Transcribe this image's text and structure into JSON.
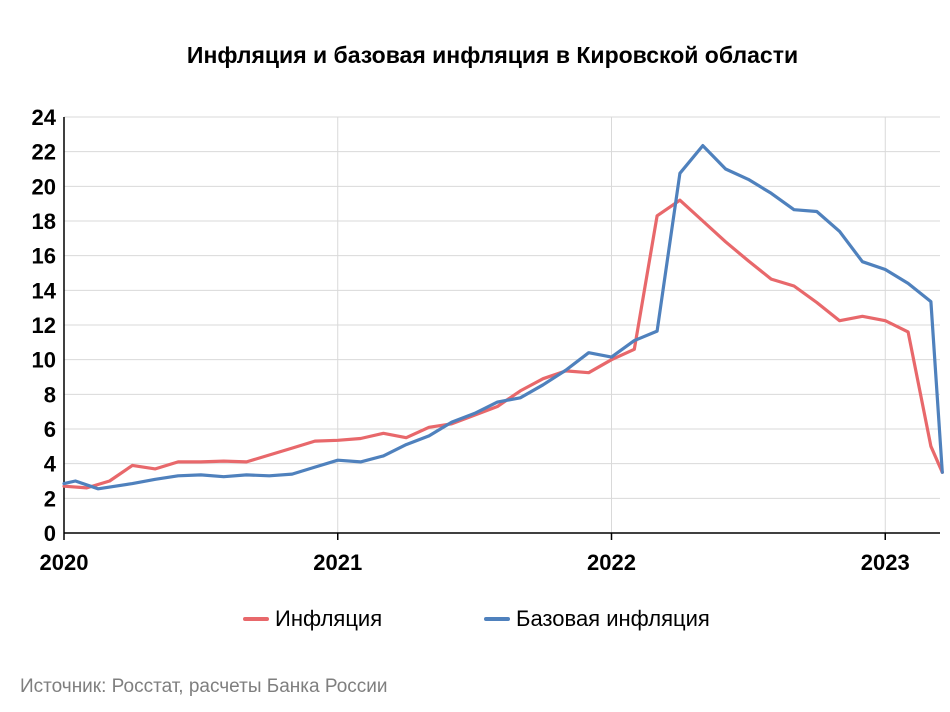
{
  "source_note": "Источник: Росстат, расчеты Банка России",
  "chart_data": {
    "type": "line",
    "title": "Инфляция и базовая инфляция в Кировской области",
    "ylim": [
      0,
      24
    ],
    "yticks": [
      0,
      2,
      4,
      6,
      8,
      10,
      12,
      14,
      16,
      18,
      20,
      22,
      24
    ],
    "xlim": [
      0,
      38.4
    ],
    "xticks": [
      {
        "label": "2020",
        "x": 0
      },
      {
        "label": "2021",
        "x": 12
      },
      {
        "label": "2022",
        "x": 24
      },
      {
        "label": "2023",
        "x": 36
      }
    ],
    "grid": true,
    "legend_position": "bottom",
    "series": [
      {
        "name": "Инфляция",
        "color": "#E8686B",
        "x": [
          0,
          1,
          2,
          3,
          4,
          5,
          6,
          7,
          8,
          9,
          10,
          11,
          12,
          13,
          14,
          15,
          16,
          17,
          18,
          19,
          20,
          21,
          22,
          23,
          24,
          25,
          26,
          27,
          28,
          29,
          30,
          31,
          32,
          33,
          34,
          35,
          36,
          37,
          38,
          38.5
        ],
        "values": [
          2.7,
          2.6,
          3.0,
          3.9,
          3.7,
          4.1,
          4.1,
          4.15,
          4.1,
          4.5,
          4.9,
          5.3,
          5.35,
          5.45,
          5.75,
          5.5,
          6.1,
          6.3,
          6.8,
          7.3,
          8.2,
          8.9,
          9.35,
          9.25,
          10.0,
          10.6,
          18.3,
          19.2,
          18.0,
          16.8,
          15.7,
          14.65,
          14.25,
          13.3,
          12.25,
          12.5,
          12.25,
          11.6,
          5.0,
          3.5
        ]
      },
      {
        "name": "Базовая инфляция",
        "color": "#4F81BD",
        "x": [
          0,
          0.5,
          1.5,
          3,
          4,
          5,
          6,
          7,
          8,
          9,
          10,
          11,
          12,
          13,
          14,
          15,
          16,
          17,
          18,
          19,
          20,
          21,
          22,
          23,
          24,
          25,
          26,
          27,
          28,
          29,
          30,
          31,
          32,
          33,
          34,
          35,
          36,
          37,
          38,
          38.5
        ],
        "values": [
          2.85,
          3.0,
          2.55,
          2.85,
          3.1,
          3.3,
          3.35,
          3.25,
          3.35,
          3.3,
          3.4,
          3.8,
          4.2,
          4.1,
          4.45,
          5.1,
          5.6,
          6.4,
          6.9,
          7.55,
          7.8,
          8.55,
          9.4,
          10.4,
          10.15,
          11.1,
          11.65,
          20.75,
          22.35,
          21.0,
          20.4,
          19.6,
          18.65,
          18.55,
          17.4,
          15.65,
          15.2,
          14.4,
          13.35,
          3.5
        ]
      }
    ]
  }
}
